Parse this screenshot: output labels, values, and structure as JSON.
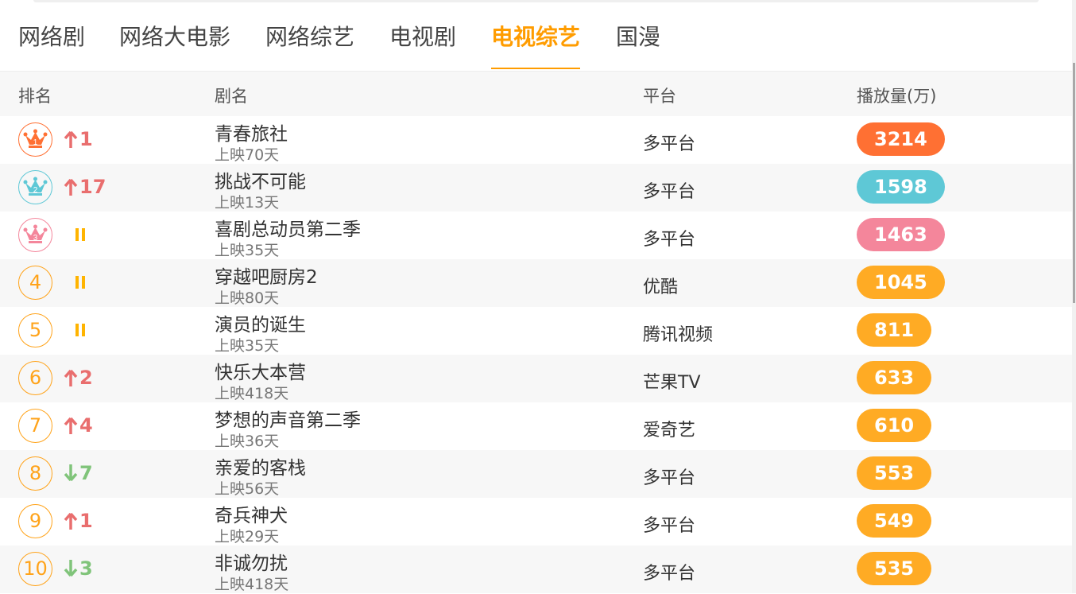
{
  "tabs": [
    {
      "label": "网络剧",
      "active": false
    },
    {
      "label": "网络大电影",
      "active": false
    },
    {
      "label": "网络综艺",
      "active": false
    },
    {
      "label": "电视剧",
      "active": false
    },
    {
      "label": "电视综艺",
      "active": true
    },
    {
      "label": "国漫",
      "active": false
    }
  ],
  "columns": {
    "rank": "排名",
    "title": "剧名",
    "platform": "平台",
    "plays": "播放量(万)"
  },
  "colors": {
    "accent": "#ff9c00",
    "top1": "#ff7033",
    "top2": "#5ec8d6",
    "top3": "#f4869b",
    "default_badge": "#ffab24",
    "up": "#e96e6e",
    "down": "#80c47a",
    "same": "#ffb400"
  },
  "rows": [
    {
      "rank": "1",
      "crown": true,
      "trend": "up",
      "change": "1",
      "title": "青春旅社",
      "days": "上映70天",
      "platform": "多平台",
      "plays": "3214"
    },
    {
      "rank": "2",
      "crown": true,
      "trend": "up",
      "change": "17",
      "title": "挑战不可能",
      "days": "上映13天",
      "platform": "多平台",
      "plays": "1598"
    },
    {
      "rank": "3",
      "crown": true,
      "trend": "same",
      "change": "",
      "title": "喜剧总动员第二季",
      "days": "上映35天",
      "platform": "多平台",
      "plays": "1463"
    },
    {
      "rank": "4",
      "crown": false,
      "trend": "same",
      "change": "",
      "title": "穿越吧厨房2",
      "days": "上映80天",
      "platform": "优酷",
      "plays": "1045"
    },
    {
      "rank": "5",
      "crown": false,
      "trend": "same",
      "change": "",
      "title": "演员的诞生",
      "days": "上映35天",
      "platform": "腾讯视频",
      "plays": "811"
    },
    {
      "rank": "6",
      "crown": false,
      "trend": "up",
      "change": "2",
      "title": "快乐大本营",
      "days": "上映418天",
      "platform": "芒果TV",
      "plays": "633"
    },
    {
      "rank": "7",
      "crown": false,
      "trend": "up",
      "change": "4",
      "title": "梦想的声音第二季",
      "days": "上映36天",
      "platform": "爱奇艺",
      "plays": "610"
    },
    {
      "rank": "8",
      "crown": false,
      "trend": "down",
      "change": "7",
      "title": "亲爱的客栈",
      "days": "上映56天",
      "platform": "多平台",
      "plays": "553"
    },
    {
      "rank": "9",
      "crown": false,
      "trend": "up",
      "change": "1",
      "title": "奇兵神犬",
      "days": "上映29天",
      "platform": "多平台",
      "plays": "549"
    },
    {
      "rank": "10",
      "crown": false,
      "trend": "down",
      "change": "3",
      "title": "非诚勿扰",
      "days": "上映418天",
      "platform": "多平台",
      "plays": "535"
    }
  ]
}
